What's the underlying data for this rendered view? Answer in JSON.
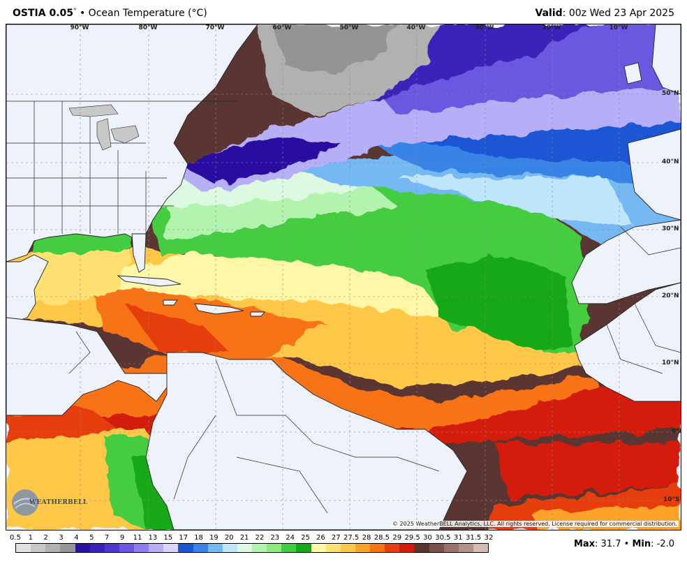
{
  "header": {
    "model": "OSTIA 0.05",
    "degree_sign": "°",
    "separator": " • ",
    "product": "Ocean Temperature (°C)",
    "valid_label": "Valid",
    "valid_value": ": 00z Wed 23 Apr 2025"
  },
  "map": {
    "lon_labels": [
      "90°W",
      "80°W",
      "70°W",
      "60°W",
      "50°W",
      "40°W",
      "30°W",
      "20°W",
      "10°W"
    ],
    "lat_labels": [
      "50°N",
      "40°N",
      "30°N",
      "20°N",
      "10°N",
      "0°",
      "10°S"
    ],
    "copyright": "© 2025 WeatherBELL Analytics, LLC. All rights reserved. License required for commercial distribution.",
    "logo_text": "WEATHERBELL"
  },
  "colorbar": {
    "labels": [
      "0.5",
      "1",
      "2",
      "3",
      "4",
      "5",
      "7",
      "9",
      "11",
      "13",
      "15",
      "17",
      "18",
      "19",
      "20",
      "21",
      "22",
      "23",
      "24",
      "25",
      "26",
      "27",
      "27.5",
      "28",
      "28.5",
      "29",
      "29.5",
      "30",
      "30.5",
      "31",
      "31.5",
      "32"
    ],
    "colors": [
      "#e2e2e2",
      "#c8c8c8",
      "#b1b1b1",
      "#949494",
      "#2a0fa0",
      "#3b23b8",
      "#5035cf",
      "#6a58e0",
      "#8d7ef0",
      "#b6aef7",
      "#d8d7fb",
      "#1b56d4",
      "#3983e6",
      "#75b8f4",
      "#bfe5fb",
      "#ddf9e2",
      "#b3f3b0",
      "#8ceb80",
      "#44cc40",
      "#12a818",
      "#fff7a8",
      "#ffe073",
      "#ffc84a",
      "#fda32a",
      "#f77316",
      "#e63d0f",
      "#d41a0a",
      "#5a3630",
      "#7b514a",
      "#9a726a",
      "#b49289",
      "#d6bbb2"
    ]
  },
  "stats": {
    "max_label": "Max",
    "max_value": ": 31.7",
    "sep": " • ",
    "min_label": "Min",
    "min_value": ": -2.0"
  }
}
